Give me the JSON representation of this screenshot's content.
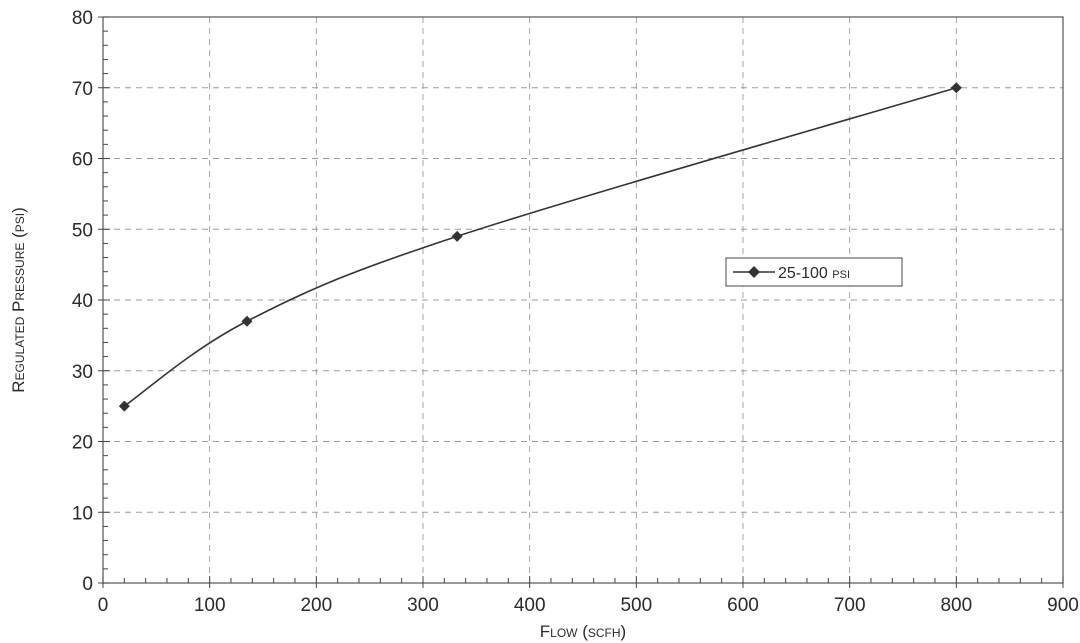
{
  "chart_data": {
    "type": "line",
    "xlabel": "Flow (scfh)",
    "ylabel": "Regulated Pressure (psi)",
    "xlim": [
      0,
      900
    ],
    "ylim": [
      0,
      80
    ],
    "x_ticks": [
      0,
      100,
      200,
      300,
      400,
      500,
      600,
      700,
      800,
      900
    ],
    "y_ticks": [
      0,
      10,
      20,
      30,
      40,
      50,
      60,
      70,
      80
    ],
    "grid": true,
    "legend_position": "center-right",
    "series": [
      {
        "name": "25-100 psi",
        "marker": "diamond",
        "color": "#333333",
        "x": [
          20,
          135,
          332,
          800
        ],
        "y": [
          25,
          37,
          49,
          70
        ]
      }
    ]
  }
}
